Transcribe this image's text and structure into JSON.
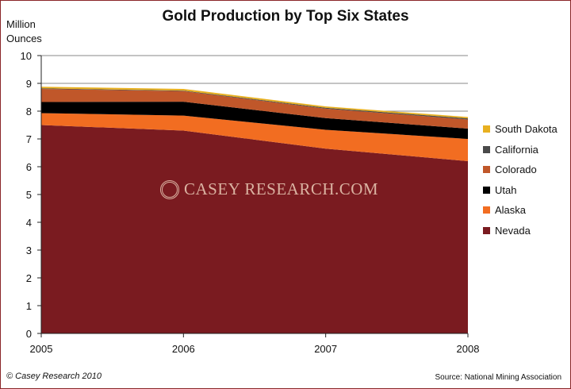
{
  "chart_data": {
    "type": "area",
    "stacked": true,
    "title": "Gold Production by Top Six States",
    "ylabel": [
      "Million",
      "Ounces"
    ],
    "xlabel": "",
    "x": [
      "2005",
      "2006",
      "2007",
      "2008"
    ],
    "ylim": [
      0,
      10
    ],
    "yticks": [
      "0",
      "1",
      "2",
      "3",
      "4",
      "5",
      "6",
      "7",
      "8",
      "9",
      "10"
    ],
    "grid": true,
    "legend_position": "right",
    "series": [
      {
        "name": "Nevada",
        "color": "#7a1b20",
        "values": [
          7.5,
          7.3,
          6.65,
          6.2
        ]
      },
      {
        "name": "Alaska",
        "color": "#f26d21",
        "values": [
          0.43,
          0.54,
          0.68,
          0.8
        ]
      },
      {
        "name": "Utah",
        "color": "#000000",
        "values": [
          0.4,
          0.5,
          0.42,
          0.37
        ]
      },
      {
        "name": "Colorado",
        "color": "#c0572a",
        "values": [
          0.47,
          0.38,
          0.34,
          0.33
        ]
      },
      {
        "name": "California",
        "color": "#4a4a4a",
        "values": [
          0.02,
          0.02,
          0.03,
          0.04
        ]
      },
      {
        "name": "South Dakota",
        "color": "#e8b020",
        "values": [
          0.06,
          0.06,
          0.05,
          0.05
        ]
      }
    ]
  },
  "watermark": {
    "text": "CASEY RESEARCH.COM"
  },
  "footer": {
    "copyright": "© Casey Research 2010",
    "source": "Source: National Mining Association"
  }
}
